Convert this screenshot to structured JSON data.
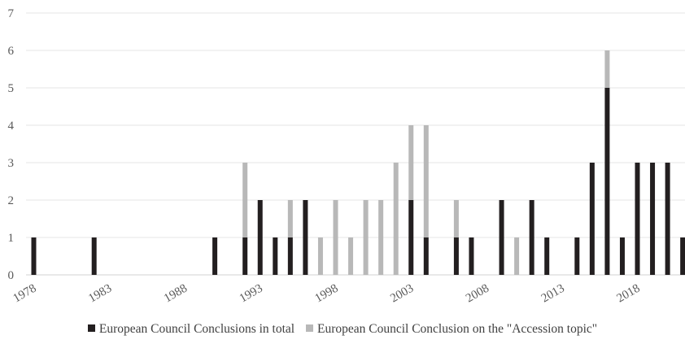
{
  "chart_data": {
    "type": "bar",
    "stacked": true,
    "x": [
      1978,
      1979,
      1980,
      1981,
      1982,
      1983,
      1984,
      1985,
      1986,
      1987,
      1988,
      1989,
      1990,
      1991,
      1992,
      1993,
      1994,
      1995,
      1996,
      1997,
      1998,
      1999,
      2000,
      2001,
      2002,
      2003,
      2004,
      2005,
      2006,
      2007,
      2008,
      2009,
      2010,
      2011,
      2012,
      2013,
      2014,
      2015,
      2016,
      2017,
      2018,
      2019,
      2020,
      2021
    ],
    "x_tick_labels": [
      "1978",
      "1983",
      "1988",
      "1993",
      "1998",
      "2003",
      "2008",
      "2013",
      "2018"
    ],
    "x_tick_years": [
      1978,
      1983,
      1988,
      1993,
      1998,
      2003,
      2008,
      2013,
      2018
    ],
    "series": [
      {
        "name": "European Council Conclusions in total",
        "color": "#231f20",
        "values": [
          1,
          0,
          0,
          0,
          1,
          0,
          0,
          0,
          0,
          0,
          0,
          0,
          1,
          0,
          1,
          2,
          1,
          1,
          2,
          0,
          0,
          0,
          0,
          0,
          0,
          2,
          1,
          0,
          1,
          1,
          0,
          2,
          0,
          2,
          1,
          0,
          1,
          3,
          5,
          1,
          3,
          3,
          3,
          1
        ]
      },
      {
        "name": "European Council Conclusion on the \"Accession topic\"",
        "color": "#b8b8b8",
        "values": [
          0,
          0,
          0,
          0,
          0,
          0,
          0,
          0,
          0,
          0,
          0,
          0,
          0,
          0,
          2,
          0,
          0,
          1,
          0,
          1,
          2,
          1,
          2,
          2,
          3,
          2,
          3,
          0,
          1,
          0,
          0,
          0,
          1,
          0,
          0,
          0,
          0,
          0,
          1,
          0,
          0,
          0,
          0,
          0
        ]
      }
    ],
    "ylim": [
      0,
      7
    ],
    "y_ticks": [
      0,
      1,
      2,
      3,
      4,
      5,
      6,
      7
    ],
    "grid": true,
    "legend_position": "bottom",
    "title": "",
    "xlabel": "",
    "ylabel": ""
  }
}
